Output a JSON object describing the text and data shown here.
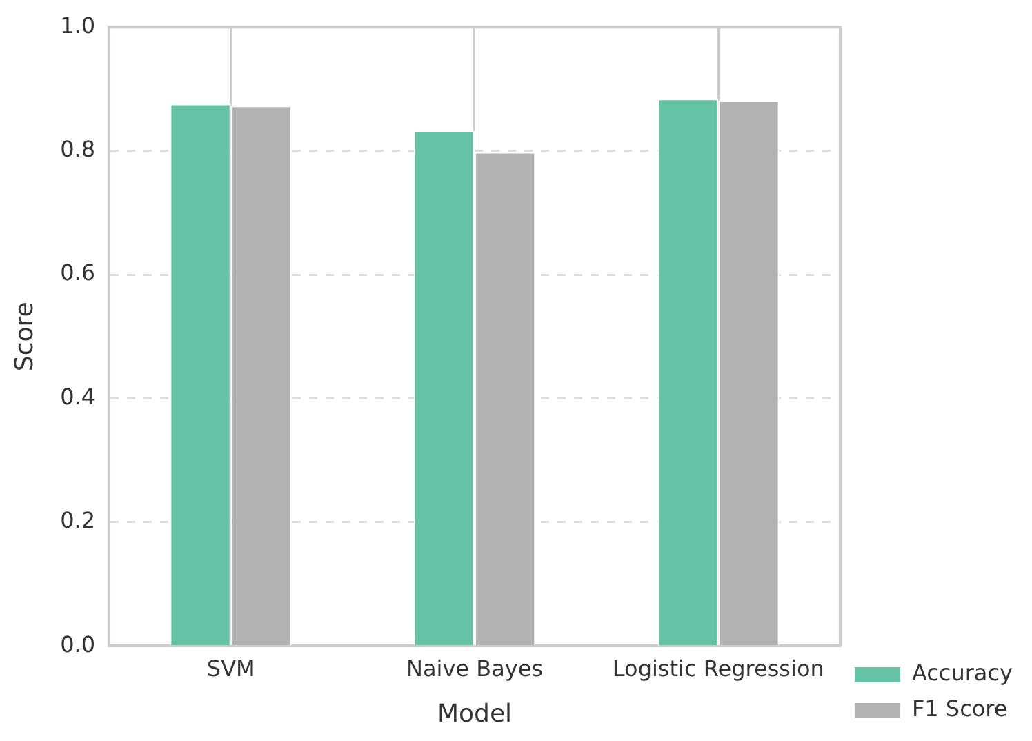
{
  "chart_data": {
    "type": "bar",
    "xlabel": "Model",
    "ylabel": "Score",
    "categories": [
      "SVM",
      "Naive Bayes",
      "Logistic Regression"
    ],
    "series": [
      {
        "name": "Accuracy",
        "color": "#66c2a5",
        "values": [
          0.876,
          0.832,
          0.884
        ]
      },
      {
        "name": "F1 Score",
        "color": "#b3b3b3",
        "values": [
          0.873,
          0.798,
          0.881
        ]
      }
    ],
    "ylim": [
      0,
      1
    ],
    "yticks": [
      {
        "value": 0,
        "label": "0.0"
      },
      0.2,
      0.4,
      0.6,
      0.8,
      {
        "value": 1,
        "label": "1.0"
      }
    ],
    "grid": true,
    "legend": "bottom right"
  }
}
